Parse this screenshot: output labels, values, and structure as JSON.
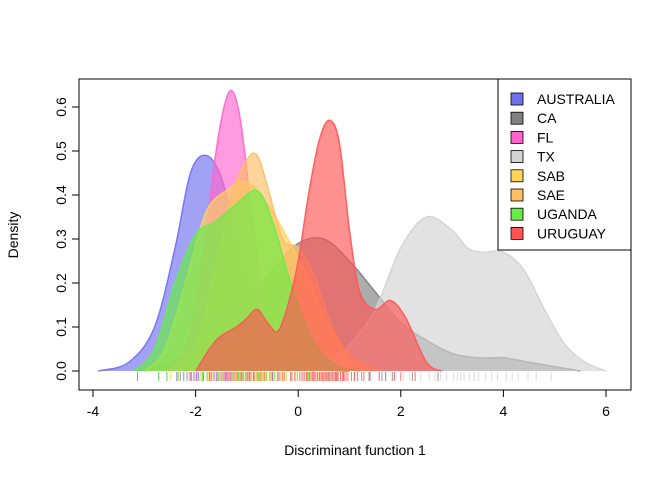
{
  "chart_data": {
    "type": "area",
    "title": "",
    "xlabel": "Discriminant function 1",
    "ylabel": "Density",
    "xlim": [
      -4,
      6.3
    ],
    "ylim": [
      0,
      0.65
    ],
    "xticks": [
      -4,
      -2,
      0,
      2,
      4,
      6
    ],
    "yticks": [
      0.0,
      0.1,
      0.2,
      0.3,
      0.4,
      0.5,
      0.6
    ],
    "xtick_labels": [
      "-4",
      "-2",
      "0",
      "2",
      "4",
      "6"
    ],
    "ytick_labels": [
      "0.0",
      "0.1",
      "0.2",
      "0.3",
      "0.4",
      "0.5",
      "0.6"
    ],
    "grid": false,
    "legend_position": "top-right",
    "series": [
      {
        "name": "AUSTRALIA",
        "color": "#7070ee",
        "x": [
          -3.9,
          -3.3,
          -2.8,
          -2.4,
          -2.1,
          -1.8,
          -1.5,
          -1.2,
          -0.9,
          -0.6,
          -0.3,
          0.0,
          0.3,
          0.7,
          1.0
        ],
        "y": [
          0.0,
          0.02,
          0.1,
          0.28,
          0.45,
          0.49,
          0.44,
          0.3,
          0.16,
          0.07,
          0.03,
          0.01,
          0.004,
          0.001,
          0.0
        ]
      },
      {
        "name": "CA",
        "color": "#808080",
        "x": [
          -3.0,
          -2.5,
          -2.0,
          -1.5,
          -1.0,
          -0.5,
          0.0,
          0.5,
          1.0,
          1.5,
          2.0,
          2.5,
          3.0,
          3.5,
          4.0,
          4.5,
          5.0,
          5.5
        ],
        "y": [
          0.0,
          0.02,
          0.05,
          0.1,
          0.16,
          0.23,
          0.29,
          0.3,
          0.25,
          0.18,
          0.11,
          0.07,
          0.04,
          0.03,
          0.03,
          0.02,
          0.01,
          0.0
        ]
      },
      {
        "name": "FL",
        "color": "#ff66cc",
        "x": [
          -2.6,
          -2.2,
          -1.9,
          -1.6,
          -1.4,
          -1.25,
          -1.1,
          -0.9,
          -0.7,
          -0.5,
          -0.3,
          0.0,
          0.3
        ],
        "y": [
          0.0,
          0.05,
          0.22,
          0.5,
          0.62,
          0.63,
          0.55,
          0.35,
          0.18,
          0.08,
          0.03,
          0.01,
          0.0
        ]
      },
      {
        "name": "TX",
        "color": "#d3d3d3",
        "x": [
          0.0,
          0.5,
          1.0,
          1.5,
          2.0,
          2.5,
          3.0,
          3.3,
          3.6,
          4.0,
          4.4,
          4.8,
          5.2,
          5.6,
          6.0
        ],
        "y": [
          0.0,
          0.02,
          0.06,
          0.14,
          0.28,
          0.35,
          0.32,
          0.28,
          0.27,
          0.27,
          0.23,
          0.14,
          0.06,
          0.02,
          0.0
        ]
      },
      {
        "name": "SAB",
        "color": "#ffd45a",
        "x": [
          -3.0,
          -2.6,
          -2.2,
          -1.8,
          -1.4,
          -1.0,
          -0.6,
          -0.2,
          0.2,
          0.6,
          1.0,
          1.4
        ],
        "y": [
          0.0,
          0.05,
          0.2,
          0.36,
          0.41,
          0.43,
          0.38,
          0.3,
          0.21,
          0.1,
          0.03,
          0.0
        ]
      },
      {
        "name": "SAE",
        "color": "#ffbf66",
        "x": [
          -2.5,
          -2.0,
          -1.6,
          -1.3,
          -1.0,
          -0.8,
          -0.6,
          -0.3,
          0.0,
          0.3,
          0.6,
          0.9,
          1.2,
          1.6
        ],
        "y": [
          0.0,
          0.06,
          0.25,
          0.4,
          0.48,
          0.49,
          0.42,
          0.3,
          0.28,
          0.22,
          0.12,
          0.05,
          0.02,
          0.0
        ]
      },
      {
        "name": "UGANDA",
        "color": "#66ee44",
        "x": [
          -3.2,
          -2.8,
          -2.4,
          -2.0,
          -1.6,
          -1.2,
          -0.8,
          -0.5,
          -0.2,
          0.1,
          0.4,
          0.8,
          1.2
        ],
        "y": [
          0.0,
          0.05,
          0.2,
          0.31,
          0.34,
          0.38,
          0.41,
          0.34,
          0.22,
          0.12,
          0.05,
          0.01,
          0.0
        ]
      },
      {
        "name": "URUGUAY",
        "color": "#ff5555",
        "x": [
          -2.0,
          -1.6,
          -1.2,
          -1.0,
          -0.8,
          -0.6,
          -0.4,
          -0.2,
          0.0,
          0.2,
          0.4,
          0.6,
          0.8,
          1.0,
          1.2,
          1.5,
          1.8,
          2.1,
          2.5,
          2.8
        ],
        "y": [
          0.0,
          0.07,
          0.1,
          0.12,
          0.14,
          0.11,
          0.09,
          0.15,
          0.25,
          0.4,
          0.52,
          0.57,
          0.52,
          0.32,
          0.18,
          0.14,
          0.16,
          0.12,
          0.02,
          0.0
        ]
      }
    ],
    "legend": [
      "AUSTRALIA",
      "CA",
      "FL",
      "TX",
      "SAB",
      "SAE",
      "UGANDA",
      "URUGUAY"
    ]
  }
}
